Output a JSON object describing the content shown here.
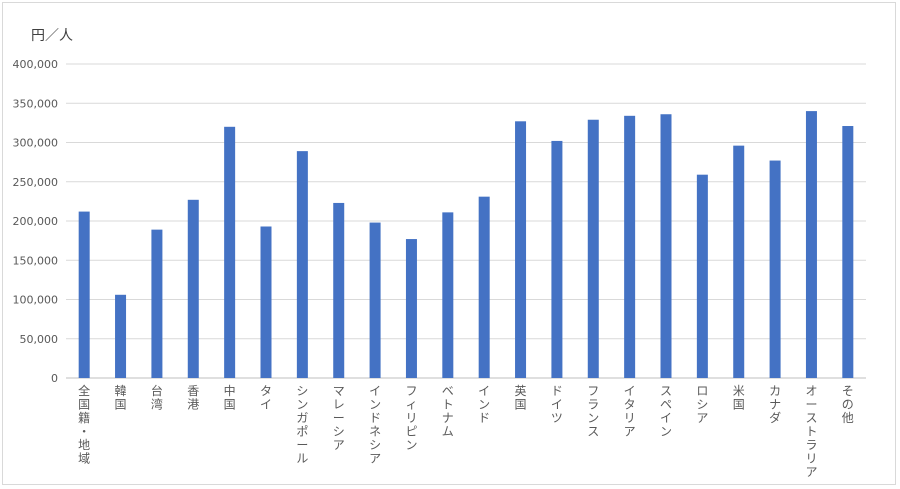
{
  "chart_data": {
    "type": "bar",
    "title": "",
    "ylabel": "円／人",
    "xlabel": "",
    "ylim": [
      0,
      400000
    ],
    "yticks": [
      0,
      50000,
      100000,
      150000,
      200000,
      250000,
      300000,
      350000,
      400000
    ],
    "ytick_labels": [
      "0",
      "50,000",
      "100,000",
      "150,000",
      "200,000",
      "250,000",
      "300,000",
      "350,000",
      "400,000"
    ],
    "grid": true,
    "bar_color": "#4472c4",
    "categories": [
      "全国籍・地域",
      "韓国",
      "台湾",
      "香港",
      "中国",
      "タイ",
      "シンガポール",
      "マレーシア",
      "インドネシア",
      "フィリピン",
      "ベトナム",
      "インド",
      "英国",
      "ドイツ",
      "フランス",
      "イタリア",
      "スペイン",
      "ロシア",
      "米国",
      "カナダ",
      "オーストラリア",
      "その他"
    ],
    "values": [
      212000,
      106000,
      189000,
      227000,
      320000,
      193000,
      289000,
      223000,
      198000,
      177000,
      211000,
      231000,
      327000,
      302000,
      329000,
      334000,
      336000,
      259000,
      296000,
      277000,
      340000,
      321000
    ]
  }
}
